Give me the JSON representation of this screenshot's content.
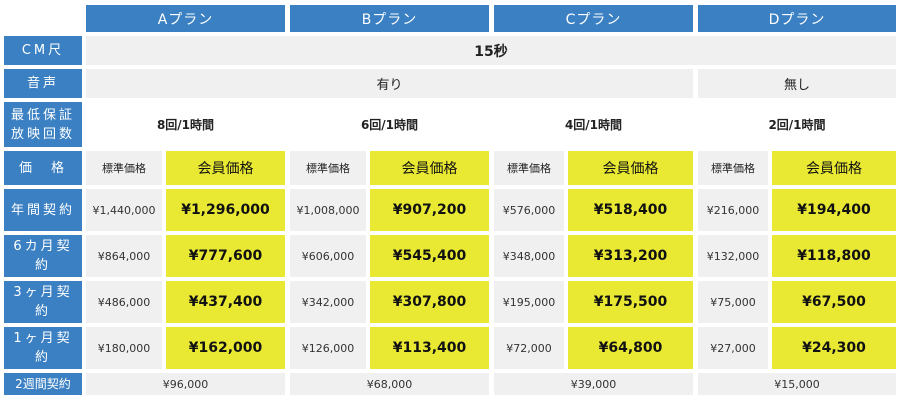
{
  "plans": [
    "Aプラン",
    "Bプラン",
    "Cプラン",
    "Dプラン"
  ],
  "rows": {
    "cm": "CM尺",
    "voice": "音声",
    "min": "最低保証\n放映回数",
    "price": "価　格",
    "year": "年間契約",
    "m6": "6カ月契約",
    "m3": "3ヶ月契約",
    "m1": "1ヶ月契約",
    "w2": "2週間契約"
  },
  "cm_length": "15秒",
  "voice": {
    "abc": "有り",
    "d": "無し"
  },
  "min_broadcasts": [
    "8回/1時間",
    "6回/1時間",
    "4回/1時間",
    "2回/1時間"
  ],
  "price_labels": {
    "standard": "標準価格",
    "member": "会員価格"
  },
  "prices": {
    "year": [
      {
        "std": "¥1,440,000",
        "mem": "¥1,296,000"
      },
      {
        "std": "¥1,008,000",
        "mem": "¥907,200"
      },
      {
        "std": "¥576,000",
        "mem": "¥518,400"
      },
      {
        "std": "¥216,000",
        "mem": "¥194,400"
      }
    ],
    "m6": [
      {
        "std": "¥864,000",
        "mem": "¥777,600"
      },
      {
        "std": "¥606,000",
        "mem": "¥545,400"
      },
      {
        "std": "¥348,000",
        "mem": "¥313,200"
      },
      {
        "std": "¥132,000",
        "mem": "¥118,800"
      }
    ],
    "m3": [
      {
        "std": "¥486,000",
        "mem": "¥437,400"
      },
      {
        "std": "¥342,000",
        "mem": "¥307,800"
      },
      {
        "std": "¥195,000",
        "mem": "¥175,500"
      },
      {
        "std": "¥75,000",
        "mem": "¥67,500"
      }
    ],
    "m1": [
      {
        "std": "¥180,000",
        "mem": "¥162,000"
      },
      {
        "std": "¥126,000",
        "mem": "¥113,400"
      },
      {
        "std": "¥72,000",
        "mem": "¥64,800"
      },
      {
        "std": "¥27,000",
        "mem": "¥24,300"
      }
    ]
  },
  "w2_prices": [
    "¥96,000",
    "¥68,000",
    "¥39,000",
    "¥15,000"
  ]
}
